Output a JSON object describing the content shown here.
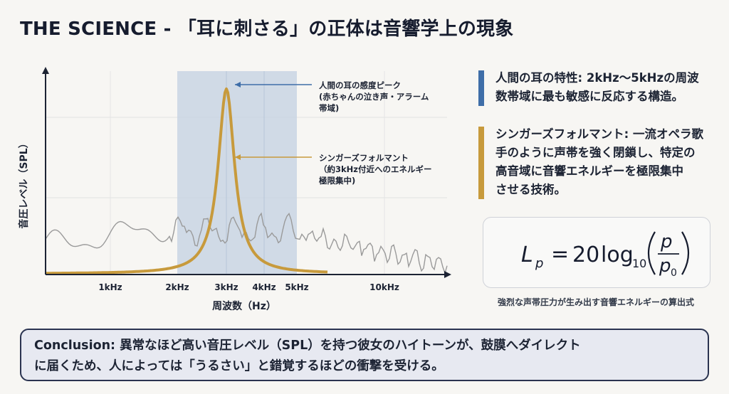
{
  "title": "THE SCIENCE - 「耳に刺さる」の正体は音響学上の現象",
  "chart_data": {
    "type": "line",
    "xlabel": "周波数（Hz）",
    "ylabel": "音圧レベル（SPL）",
    "tick_labels": [
      "1kHz",
      "2kHz",
      "3kHz",
      "4kHz",
      "5kHz",
      "10kHz"
    ],
    "highlight_band": [
      "2kHz",
      "5kHz"
    ],
    "series": [
      {
        "name": "シンガーズフォルマント",
        "color": "#c79a3c",
        "peak": "3kHz"
      },
      {
        "name": "",
        "color": "#9a9a9a"
      }
    ],
    "annotations": [
      {
        "lines": [
          "人間の耳の感度ピーク",
          "(赤ちゃんの泣き声・アラーム",
          "帯域)"
        ],
        "color": "#3f6ea8"
      },
      {
        "lines": [
          "シンガーズフォルマント",
          "（約3kHz付近へのエネルギー",
          "極限集中)"
        ],
        "color": "#c79a3c"
      }
    ]
  },
  "notes": [
    {
      "lines": [
        "人間の耳の特性: 2kHz〜5kHzの周波",
        "数帯域に最も敏感に反応する構造。"
      ],
      "color": "#3f6ea8"
    },
    {
      "lines": [
        "シンガーズフォルマント: 一流オペラ歌",
        "手のように声帯を強く閉鎖し、特定の",
        "高音域に音響エネルギーを極限集中",
        "させる技術。"
      ],
      "color": "#c79a3c"
    }
  ],
  "formula": {
    "lhs_base": "L",
    "lhs_sub": "p",
    "coef": "20",
    "fn": "log",
    "fn_sub": "10",
    "num": "p",
    "den_base": "p",
    "den_sub": "0",
    "caption": "強烈な声帯圧力が生み出す音響エネルギーの算出式"
  },
  "conclusion": {
    "lines": [
      "Conclusion: 異常なほど高い音圧レベル（SPL）を持つ彼女のハイトーンが、鼓膜へダイレクト",
      "に届くため、人によっては「うるさい」と錯覚するほどの衝撃を受ける。"
    ]
  }
}
